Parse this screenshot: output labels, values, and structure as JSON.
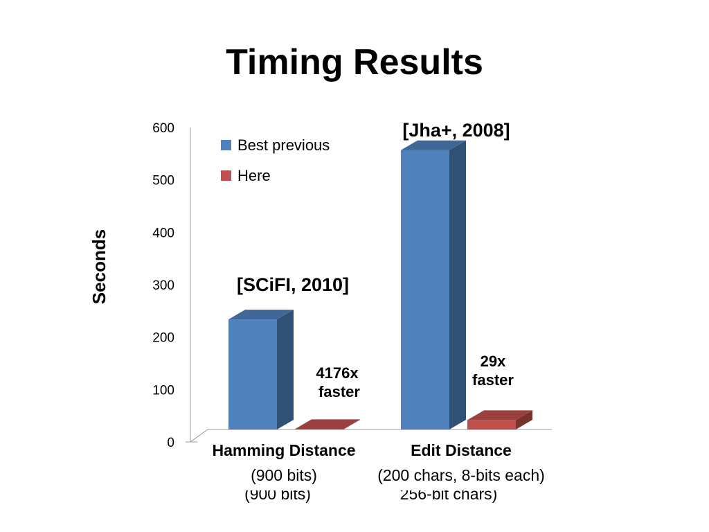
{
  "slide": {
    "title": "Timing Results"
  },
  "chart_data": {
    "type": "bar",
    "ylabel": "Seconds",
    "ylim": [
      0,
      600
    ],
    "yticks": [
      0,
      100,
      200,
      300,
      400,
      500,
      600
    ],
    "categories": [
      "Hamming Distance",
      "Edit Distance"
    ],
    "category_sublabels": [
      "(900 bits)",
      "(200 chars, 8-bits each)"
    ],
    "hidden_sublabels": [
      "(900 bits)",
      "256-bit chars)"
    ],
    "series": [
      {
        "name": "Best previous",
        "color": "#4F81BD",
        "values": [
          210,
          533
        ]
      },
      {
        "name": "Here",
        "color": "#C0504D",
        "values": [
          0.05,
          18
        ]
      }
    ],
    "annotations": {
      "bar_sources": [
        "[SCiFI, 2010]",
        "[Jha+, 2008]"
      ],
      "speedups": [
        {
          "line1": "4176x",
          "line2": "faster"
        },
        {
          "line1": "29x",
          "line2": "faster"
        }
      ]
    },
    "grid": false,
    "legend": "top-left"
  }
}
